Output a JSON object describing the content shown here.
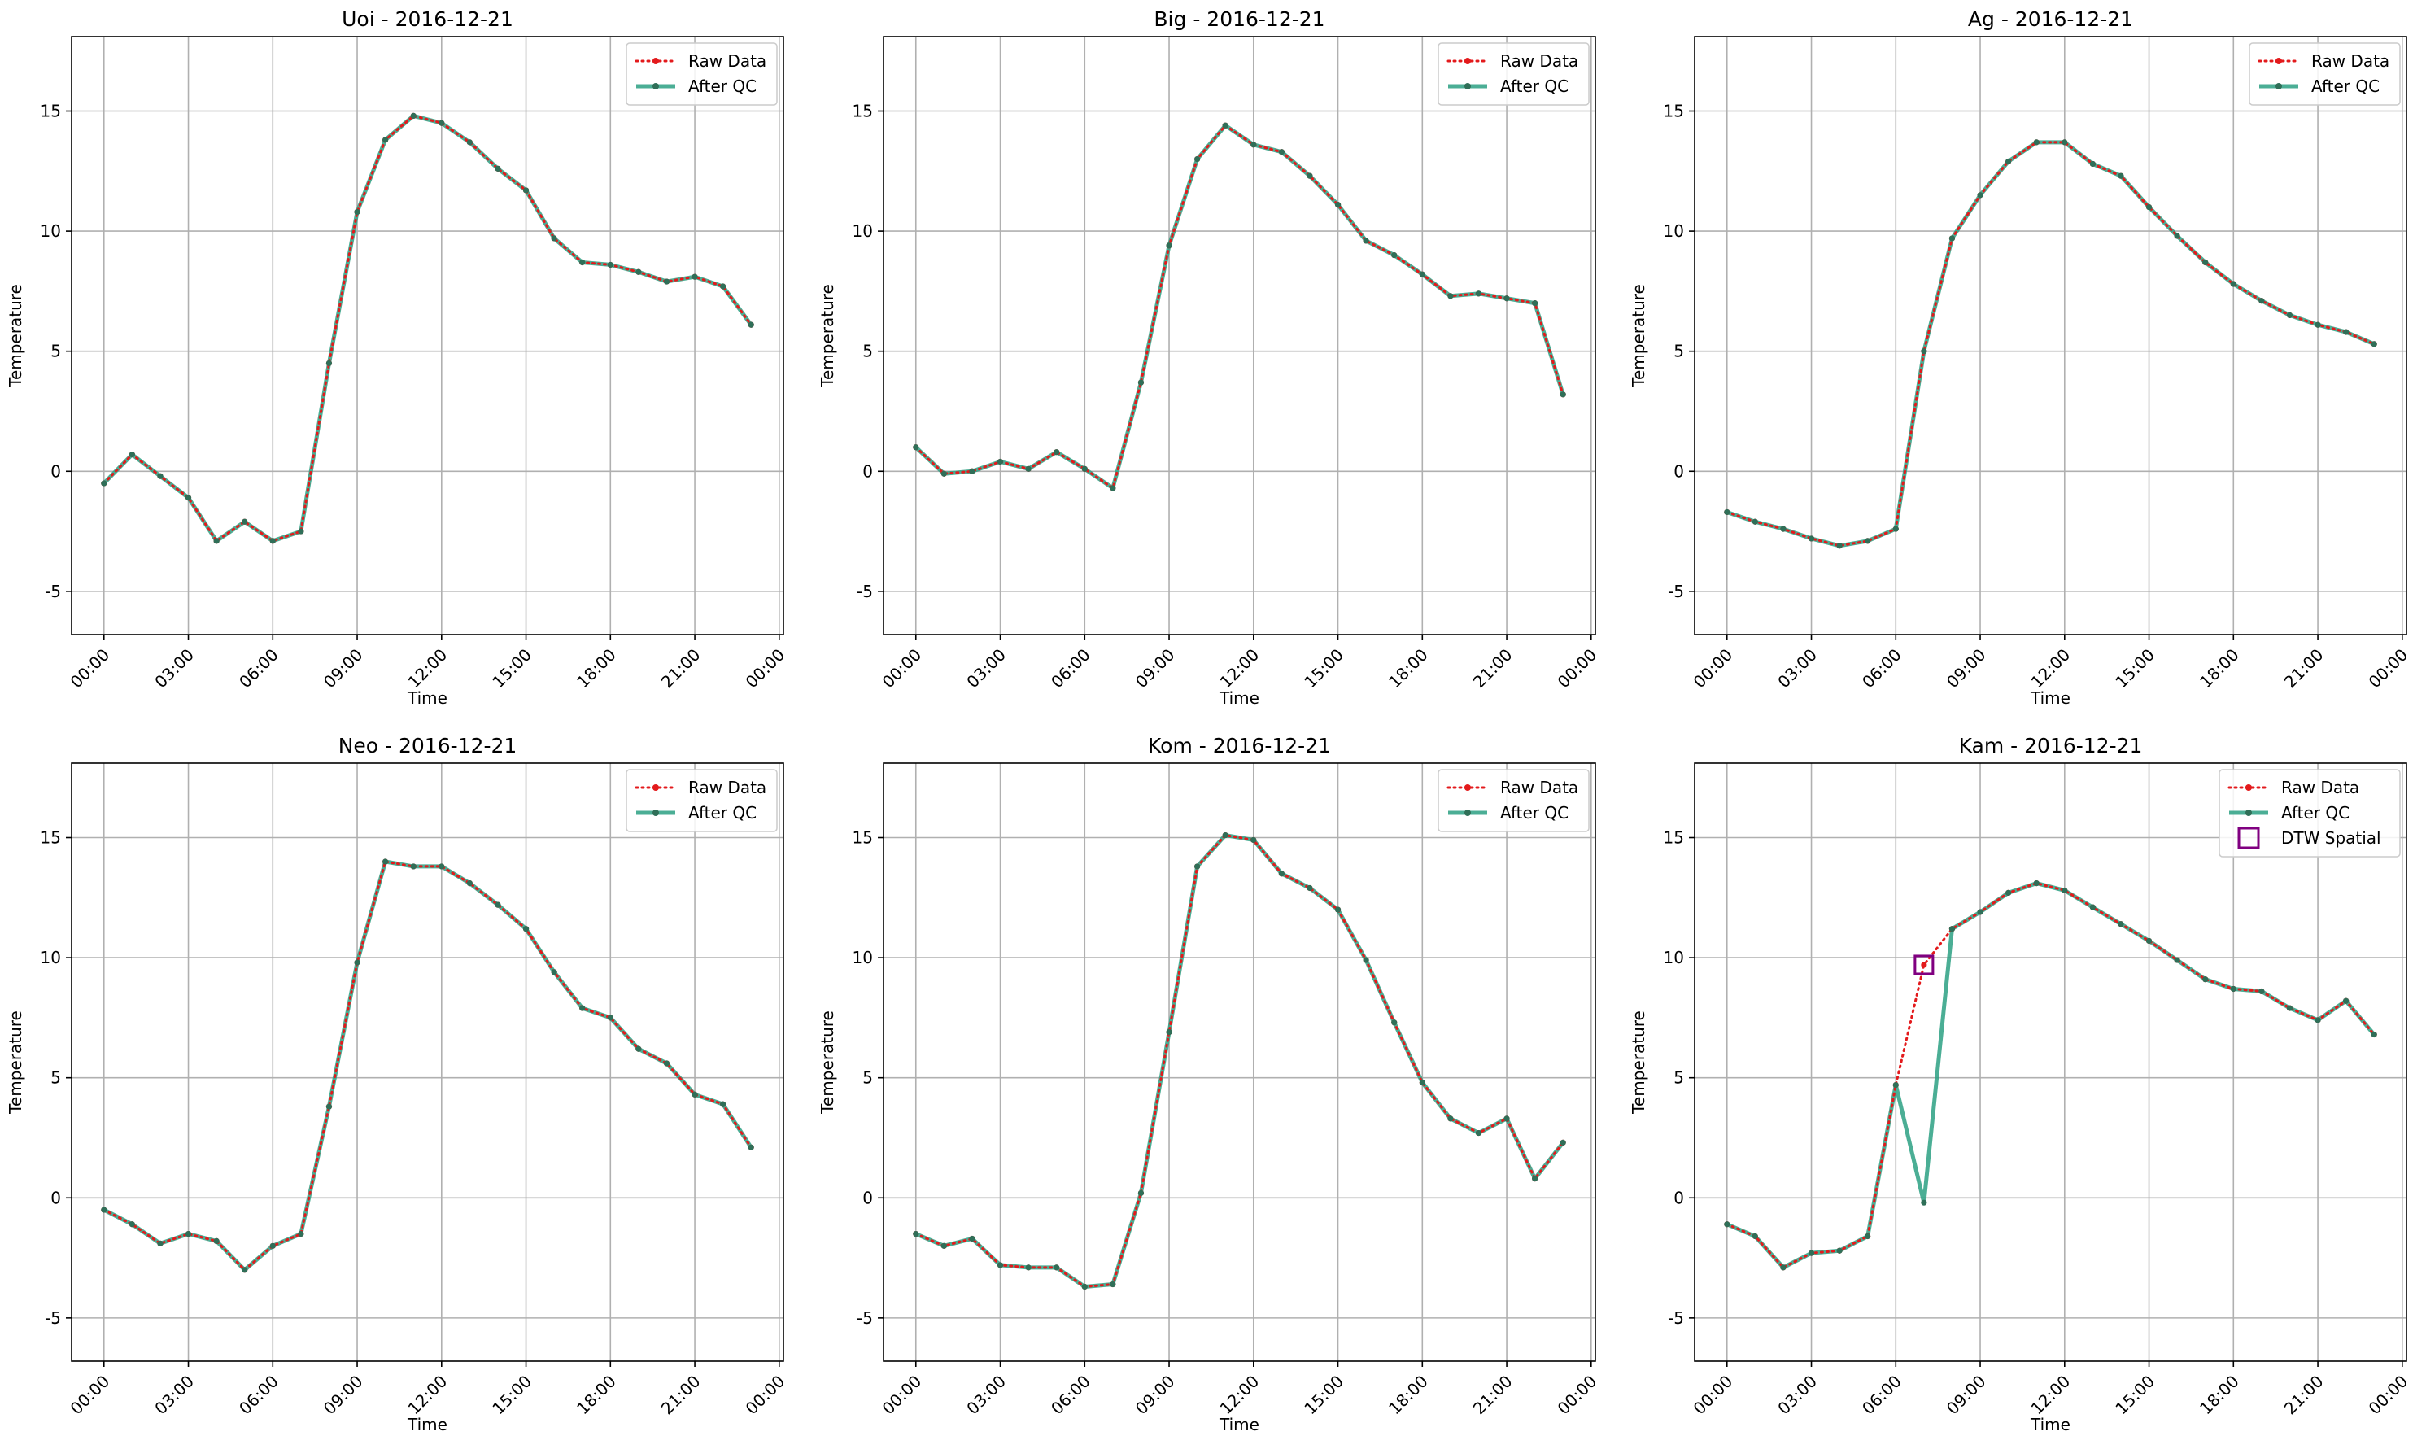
{
  "figure": {
    "layout": "2 rows x 3 columns"
  },
  "legend_labels": {
    "raw": "Raw Data",
    "qc": "After QC",
    "flag": "DTW Spatial"
  },
  "colors": {
    "raw": "#e31a1c",
    "qc": "#2ca083",
    "qc_marker": "#2f6f58",
    "flag": "#800080",
    "grid": "#b0b0b0",
    "axis": "#000000"
  },
  "chart_data": [
    {
      "type": "line",
      "title": "Uoi - 2016-12-21",
      "xlabel": "Time",
      "ylabel": "Temperature",
      "x_hours": [
        0,
        1,
        2,
        3,
        4,
        5,
        6,
        7,
        8,
        9,
        10,
        11,
        12,
        13,
        14,
        15,
        16,
        17,
        18,
        19,
        20,
        21,
        22,
        23
      ],
      "xticks": [
        "00:00",
        "03:00",
        "06:00",
        "09:00",
        "12:00",
        "15:00",
        "18:00",
        "21:00",
        "00:00"
      ],
      "yticks": [
        -5,
        0,
        5,
        10,
        15
      ],
      "xlim": [
        -1.15,
        24.15
      ],
      "ylim": [
        -6.8,
        18.1
      ],
      "grid": true,
      "legend_position": "top-right",
      "series": [
        {
          "name": "Raw Data",
          "style": "dotted",
          "values": [
            -0.5,
            0.7,
            -0.2,
            -1.1,
            -2.9,
            -2.1,
            -2.9,
            -2.5,
            4.5,
            10.8,
            13.8,
            14.8,
            14.5,
            13.7,
            12.6,
            11.7,
            9.7,
            8.7,
            8.6,
            8.3,
            7.9,
            8.1,
            7.7,
            6.1
          ]
        },
        {
          "name": "After QC",
          "style": "solid",
          "values": [
            -0.5,
            0.7,
            -0.2,
            -1.1,
            -2.9,
            -2.1,
            -2.9,
            -2.5,
            4.5,
            10.8,
            13.8,
            14.8,
            14.5,
            13.7,
            12.6,
            11.7,
            9.7,
            8.7,
            8.6,
            8.3,
            7.9,
            8.1,
            7.7,
            6.1
          ]
        }
      ]
    },
    {
      "type": "line",
      "title": "Big - 2016-12-21",
      "xlabel": "Time",
      "ylabel": "Temperature",
      "x_hours": [
        0,
        1,
        2,
        3,
        4,
        5,
        6,
        7,
        8,
        9,
        10,
        11,
        12,
        13,
        14,
        15,
        16,
        17,
        18,
        19,
        20,
        21,
        22,
        23
      ],
      "xticks": [
        "00:00",
        "03:00",
        "06:00",
        "09:00",
        "12:00",
        "15:00",
        "18:00",
        "21:00",
        "00:00"
      ],
      "yticks": [
        -5,
        0,
        5,
        10,
        15
      ],
      "xlim": [
        -1.15,
        24.15
      ],
      "ylim": [
        -6.8,
        18.1
      ],
      "grid": true,
      "legend_position": "top-right",
      "series": [
        {
          "name": "Raw Data",
          "style": "dotted",
          "values": [
            1.0,
            -0.1,
            0.0,
            0.4,
            0.1,
            0.8,
            0.1,
            -0.7,
            3.7,
            9.4,
            13.0,
            14.4,
            13.6,
            13.3,
            12.3,
            11.1,
            9.6,
            9.0,
            8.2,
            7.3,
            7.4,
            7.2,
            7.0,
            3.2
          ]
        },
        {
          "name": "After QC",
          "style": "solid",
          "values": [
            1.0,
            -0.1,
            0.0,
            0.4,
            0.1,
            0.8,
            0.1,
            -0.7,
            3.7,
            9.4,
            13.0,
            14.4,
            13.6,
            13.3,
            12.3,
            11.1,
            9.6,
            9.0,
            8.2,
            7.3,
            7.4,
            7.2,
            7.0,
            3.2
          ]
        }
      ]
    },
    {
      "type": "line",
      "title": "Ag - 2016-12-21",
      "xlabel": "Time",
      "ylabel": "Temperature",
      "x_hours": [
        0,
        1,
        2,
        3,
        4,
        5,
        6,
        7,
        8,
        9,
        10,
        11,
        12,
        13,
        14,
        15,
        16,
        17,
        18,
        19,
        20,
        21,
        22,
        23
      ],
      "xticks": [
        "00:00",
        "03:00",
        "06:00",
        "09:00",
        "12:00",
        "15:00",
        "18:00",
        "21:00",
        "00:00"
      ],
      "yticks": [
        -5,
        0,
        5,
        10,
        15
      ],
      "xlim": [
        -1.15,
        24.15
      ],
      "ylim": [
        -6.8,
        18.1
      ],
      "grid": true,
      "legend_position": "top-right",
      "series": [
        {
          "name": "Raw Data",
          "style": "dotted",
          "values": [
            -1.7,
            -2.1,
            -2.4,
            -2.8,
            -3.1,
            -2.9,
            -2.4,
            5.0,
            9.7,
            11.5,
            12.9,
            13.7,
            13.7,
            12.8,
            12.3,
            11.0,
            9.8,
            8.7,
            7.8,
            7.1,
            6.5,
            6.1,
            5.8,
            5.3
          ]
        },
        {
          "name": "After QC",
          "style": "solid",
          "values": [
            -1.7,
            -2.1,
            -2.4,
            -2.8,
            -3.1,
            -2.9,
            -2.4,
            5.0,
            9.7,
            11.5,
            12.9,
            13.7,
            13.7,
            12.8,
            12.3,
            11.0,
            9.8,
            8.7,
            7.8,
            7.1,
            6.5,
            6.1,
            5.8,
            5.3
          ]
        }
      ]
    },
    {
      "type": "line",
      "title": "Neo - 2016-12-21",
      "xlabel": "Time",
      "ylabel": "Temperature",
      "x_hours": [
        0,
        1,
        2,
        3,
        4,
        5,
        6,
        7,
        8,
        9,
        10,
        11,
        12,
        13,
        14,
        15,
        16,
        17,
        18,
        19,
        20,
        21,
        22,
        23
      ],
      "xticks": [
        "00:00",
        "03:00",
        "06:00",
        "09:00",
        "12:00",
        "15:00",
        "18:00",
        "21:00",
        "00:00"
      ],
      "yticks": [
        -5,
        0,
        5,
        10,
        15
      ],
      "xlim": [
        -1.15,
        24.15
      ],
      "ylim": [
        -6.8,
        18.1
      ],
      "grid": true,
      "legend_position": "top-right",
      "series": [
        {
          "name": "Raw Data",
          "style": "dotted",
          "values": [
            -0.5,
            -1.1,
            -1.9,
            -1.5,
            -1.8,
            -3.0,
            -2.0,
            -1.5,
            3.8,
            9.8,
            14.0,
            13.8,
            13.8,
            13.1,
            12.2,
            11.2,
            9.4,
            7.9,
            7.5,
            6.2,
            5.6,
            4.3,
            3.9,
            2.1
          ]
        },
        {
          "name": "After QC",
          "style": "solid",
          "values": [
            -0.5,
            -1.1,
            -1.9,
            -1.5,
            -1.8,
            -3.0,
            -2.0,
            -1.5,
            3.8,
            9.8,
            14.0,
            13.8,
            13.8,
            13.1,
            12.2,
            11.2,
            9.4,
            7.9,
            7.5,
            6.2,
            5.6,
            4.3,
            3.9,
            2.1
          ]
        }
      ]
    },
    {
      "type": "line",
      "title": "Kom - 2016-12-21",
      "xlabel": "Time",
      "ylabel": "Temperature",
      "x_hours": [
        0,
        1,
        2,
        3,
        4,
        5,
        6,
        7,
        8,
        9,
        10,
        11,
        12,
        13,
        14,
        15,
        16,
        17,
        18,
        19,
        20,
        21,
        22,
        23
      ],
      "xticks": [
        "00:00",
        "03:00",
        "06:00",
        "09:00",
        "12:00",
        "15:00",
        "18:00",
        "21:00",
        "00:00"
      ],
      "yticks": [
        -5,
        0,
        5,
        10,
        15
      ],
      "xlim": [
        -1.15,
        24.15
      ],
      "ylim": [
        -6.8,
        18.1
      ],
      "grid": true,
      "legend_position": "top-right",
      "series": [
        {
          "name": "Raw Data",
          "style": "dotted",
          "values": [
            -1.5,
            -2.0,
            -1.7,
            -2.8,
            -2.9,
            -2.9,
            -3.7,
            -3.6,
            0.2,
            6.9,
            13.8,
            15.1,
            14.9,
            13.5,
            12.9,
            12.0,
            9.9,
            7.3,
            4.8,
            3.3,
            2.7,
            3.3,
            0.8,
            2.3
          ]
        },
        {
          "name": "After QC",
          "style": "solid",
          "values": [
            -1.5,
            -2.0,
            -1.7,
            -2.8,
            -2.9,
            -2.9,
            -3.7,
            -3.6,
            0.2,
            6.9,
            13.8,
            15.1,
            14.9,
            13.5,
            12.9,
            12.0,
            9.9,
            7.3,
            4.8,
            3.3,
            2.7,
            3.3,
            0.8,
            2.3
          ]
        }
      ]
    },
    {
      "type": "line",
      "title": "Kam - 2016-12-21",
      "xlabel": "Time",
      "ylabel": "Temperature",
      "x_hours": [
        0,
        1,
        2,
        3,
        4,
        5,
        6,
        7,
        8,
        9,
        10,
        11,
        12,
        13,
        14,
        15,
        16,
        17,
        18,
        19,
        20,
        21,
        22,
        23
      ],
      "xticks": [
        "00:00",
        "03:00",
        "06:00",
        "09:00",
        "12:00",
        "15:00",
        "18:00",
        "21:00",
        "00:00"
      ],
      "yticks": [
        -5,
        0,
        5,
        10,
        15
      ],
      "xlim": [
        -1.15,
        24.15
      ],
      "ylim": [
        -6.8,
        18.1
      ],
      "grid": true,
      "legend_position": "top-right",
      "series": [
        {
          "name": "Raw Data",
          "style": "dotted",
          "values": [
            -1.1,
            -1.6,
            -2.9,
            -2.3,
            -2.2,
            -1.6,
            4.7,
            9.7,
            11.2,
            11.9,
            12.7,
            13.1,
            12.8,
            12.1,
            11.4,
            10.7,
            9.9,
            9.1,
            8.7,
            8.6,
            7.9,
            7.4,
            8.2,
            6.8
          ]
        },
        {
          "name": "After QC",
          "style": "solid",
          "values": [
            -1.1,
            -1.6,
            -2.9,
            -2.3,
            -2.2,
            -1.6,
            4.7,
            -0.2,
            11.2,
            11.9,
            12.7,
            13.1,
            12.8,
            12.1,
            11.4,
            10.7,
            9.9,
            9.1,
            8.7,
            8.6,
            7.9,
            7.4,
            8.2,
            6.8
          ]
        }
      ],
      "flags": [
        {
          "name": "DTW Spatial",
          "x_hour": 7,
          "value": 9.7
        }
      ]
    }
  ]
}
